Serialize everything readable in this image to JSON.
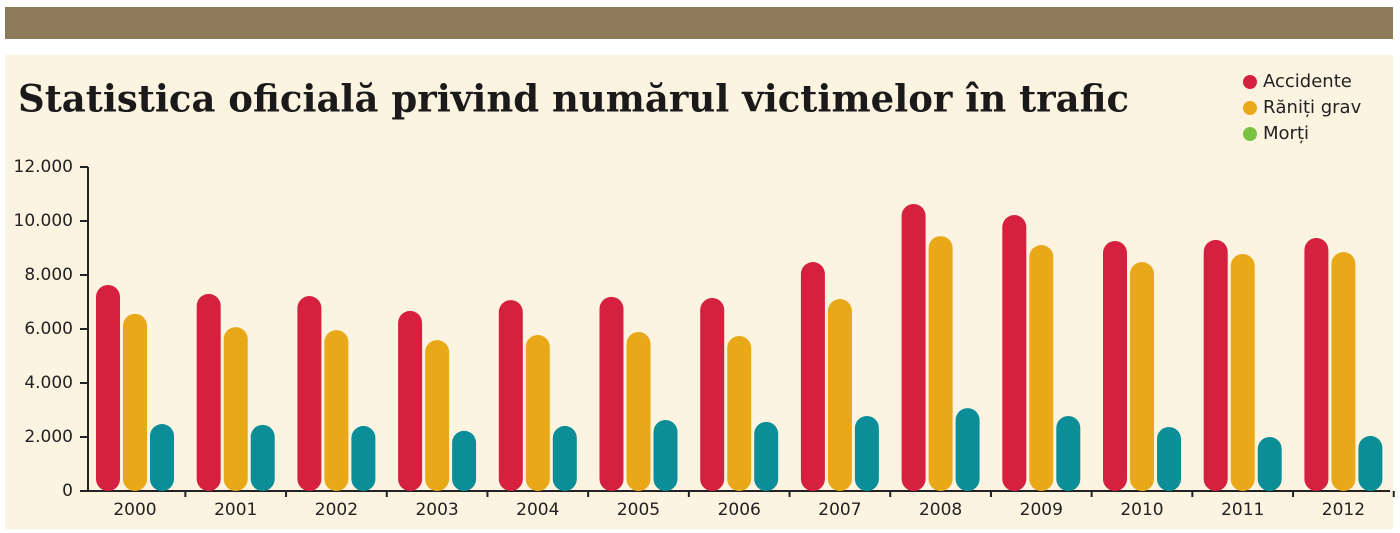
{
  "chart_data": {
    "type": "bar",
    "title": "Statistica oficială privind numărul victimelor în trafic",
    "categories": [
      "2000",
      "2001",
      "2002",
      "2003",
      "2004",
      "2005",
      "2006",
      "2007",
      "2008",
      "2009",
      "2010",
      "2011",
      "2012"
    ],
    "series": [
      {
        "name": "Accidente",
        "color": "#d6203f",
        "legend_color": "#d6203f",
        "values": [
          7630,
          7300,
          7220,
          6670,
          7070,
          7190,
          7150,
          8480,
          10630,
          10220,
          9260,
          9300,
          9370
        ]
      },
      {
        "name": "Răniți grav",
        "color": "#e9a818",
        "legend_color": "#e9a818",
        "values": [
          6560,
          6070,
          5960,
          5590,
          5780,
          5890,
          5740,
          7110,
          9440,
          9110,
          8480,
          8780,
          8850
        ]
      },
      {
        "name": "Morți",
        "color": "#0b8e98",
        "legend_color": "#7cc242",
        "values": [
          2480,
          2450,
          2410,
          2230,
          2410,
          2630,
          2560,
          2780,
          3070,
          2780,
          2370,
          2000,
          2040
        ]
      }
    ],
    "ylim": [
      0,
      12000
    ],
    "yticks": [
      0,
      {
        "value": 2000,
        "label": "2.000"
      },
      {
        "value": 4000,
        "label": "4.000"
      },
      {
        "value": 6000,
        "label": "6.000"
      },
      {
        "value": 8000,
        "label": "8.000"
      },
      {
        "value": 10000,
        "label": "10.000"
      },
      {
        "value": 12000,
        "label": "12.000"
      }
    ],
    "legend": "top-right"
  }
}
